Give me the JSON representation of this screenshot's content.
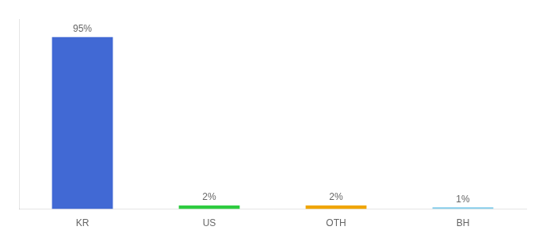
{
  "chart_data": {
    "type": "bar",
    "categories": [
      "KR",
      "US",
      "OTH",
      "BH"
    ],
    "values": [
      95,
      2,
      2,
      1
    ],
    "value_labels": [
      "95%",
      "2%",
      "2%",
      "1%"
    ],
    "data_labels": true,
    "colors": [
      "#4169d4",
      "#2ecc40",
      "#f0a500",
      "#87ceeb"
    ],
    "ylim": [
      0,
      105
    ],
    "grid": false,
    "tick_labels": "x"
  }
}
